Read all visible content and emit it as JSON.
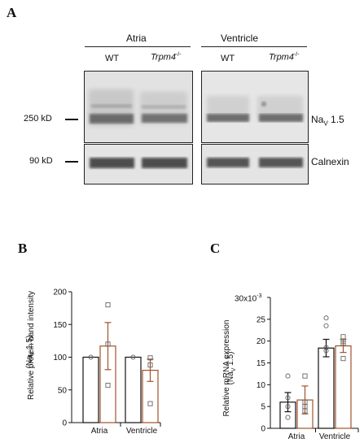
{
  "panel_a": {
    "letter": "A",
    "group_atria": "Atria",
    "group_ventricle": "Ventricle",
    "lane_wt": "WT",
    "lane_ko": "Trpm4",
    "lane_ko_sup": "-/-",
    "marker_250": "250 kD",
    "marker_90": "90 kD",
    "band_nav_prefix": "Na",
    "band_nav_sub": "V",
    "band_nav_suffix": " 1.5",
    "band_calnexin": "Calnexin"
  },
  "panel_b": {
    "letter": "B",
    "ylabel_line1": "Relative protein band intensity",
    "ylabel_line2": "(Na",
    "ylabel_sub": "V",
    "ylabel_line2_end": " 1.5)"
  },
  "panel_c": {
    "letter": "C",
    "ylabel_line1": "Relative mRNA expression",
    "ylabel_line2": "(Na",
    "ylabel_sub": "V",
    "ylabel_line2_end": " 1.5)",
    "scale_base": "30x10",
    "scale_exp": "-3"
  },
  "colors": {
    "wt": "#111111",
    "ko": "#a0522d"
  },
  "chart_data": [
    {
      "type": "bar",
      "categories": [
        "Atria",
        "Ventricle"
      ],
      "ylim": [
        0,
        200
      ],
      "yticks": [
        0,
        50,
        100,
        150,
        200
      ],
      "ytick_labels": [
        "0",
        "50",
        "100",
        "150",
        "200"
      ],
      "xlabel": "",
      "series": [
        {
          "values": [
            100,
            100
          ],
          "sem": [
            0,
            0
          ],
          "points": [
            [
              100
            ],
            [
              100
            ]
          ]
        },
        {
          "values": [
            117,
            80
          ],
          "sem": [
            36,
            17
          ],
          "points": [
            [
              180,
              120,
              57
            ],
            [
              99,
              88,
              29
            ]
          ]
        }
      ]
    },
    {
      "type": "bar",
      "categories": [
        "Atria",
        "Ventricle"
      ],
      "ylim": [
        0,
        30
      ],
      "yticks": [
        0,
        5,
        10,
        15,
        20,
        25,
        30
      ],
      "ytick_labels": [
        "0",
        "5",
        "10",
        "15",
        "20",
        "25",
        ""
      ],
      "xlabel": "",
      "series": [
        {
          "values": [
            6,
            18.4
          ],
          "sem": [
            2.2,
            2.0
          ],
          "points": [
            [
              12,
              7,
              5,
              2.5
            ],
            [
              25.3,
              23.5,
              18.5,
              17.8
            ]
          ]
        },
        {
          "values": [
            6.5,
            18.9
          ],
          "sem": [
            3.2,
            1.5
          ],
          "points": [
            [
              12,
              6,
              5,
              4
            ],
            [
              21,
              20,
              19.5,
              16
            ]
          ]
        }
      ]
    }
  ]
}
